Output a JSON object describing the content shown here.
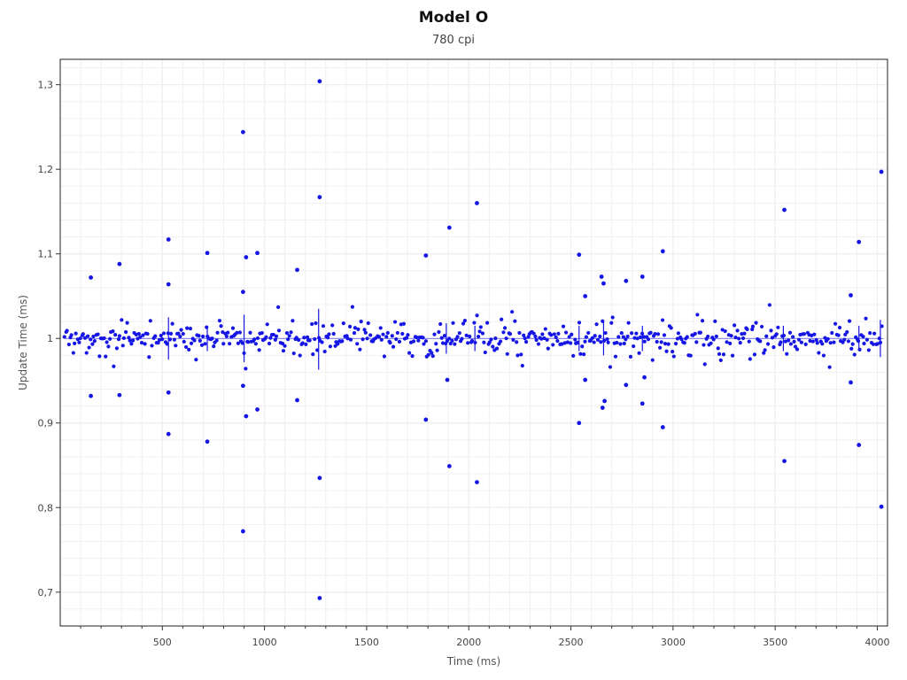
{
  "chart_data": {
    "type": "scatter",
    "title": "Model O",
    "subtitle": "780 cpi",
    "xlabel": "Time (ms)",
    "ylabel": "Update Time (ms)",
    "xlim": [
      0,
      4050
    ],
    "ylim": [
      0.66,
      1.33
    ],
    "xticks": [
      500,
      1000,
      1500,
      2000,
      2500,
      3000,
      3500,
      4000
    ],
    "xtick_labels": [
      "500",
      "1000",
      "1500",
      "2000",
      "2500",
      "3000",
      "3500",
      "4000"
    ],
    "yticks": [
      0.7,
      0.8,
      0.9,
      1.0,
      1.1,
      1.2,
      1.3
    ],
    "ytick_labels": [
      "0,7",
      "0,8",
      "0,9",
      "1",
      "1,1",
      "1,2",
      "1,3"
    ],
    "grid": true,
    "marker_color": "#1515e6",
    "points_note": "Dense band of points near 1.0 ms (roughly 0.97–1.04) across the whole range; outliers listed explicitly.",
    "outliers": [
      {
        "x": 150,
        "y": 1.072
      },
      {
        "x": 150,
        "y": 0.932
      },
      {
        "x": 290,
        "y": 1.088
      },
      {
        "x": 290,
        "y": 0.933
      },
      {
        "x": 530,
        "y": 1.117
      },
      {
        "x": 530,
        "y": 1.064
      },
      {
        "x": 530,
        "y": 0.936
      },
      {
        "x": 530,
        "y": 0.887
      },
      {
        "x": 720,
        "y": 1.101
      },
      {
        "x": 720,
        "y": 0.878
      },
      {
        "x": 895,
        "y": 1.244
      },
      {
        "x": 895,
        "y": 1.055
      },
      {
        "x": 895,
        "y": 0.944
      },
      {
        "x": 895,
        "y": 0.772
      },
      {
        "x": 910,
        "y": 1.096
      },
      {
        "x": 910,
        "y": 0.908
      },
      {
        "x": 965,
        "y": 1.101
      },
      {
        "x": 965,
        "y": 0.916
      },
      {
        "x": 1160,
        "y": 1.081
      },
      {
        "x": 1160,
        "y": 0.927
      },
      {
        "x": 1270,
        "y": 1.304
      },
      {
        "x": 1270,
        "y": 1.167
      },
      {
        "x": 1270,
        "y": 0.835
      },
      {
        "x": 1270,
        "y": 0.693
      },
      {
        "x": 1790,
        "y": 1.098
      },
      {
        "x": 1790,
        "y": 0.904
      },
      {
        "x": 1905,
        "y": 1.131
      },
      {
        "x": 1905,
        "y": 0.849
      },
      {
        "x": 1895,
        "y": 0.951
      },
      {
        "x": 2040,
        "y": 1.16
      },
      {
        "x": 2040,
        "y": 0.83
      },
      {
        "x": 2540,
        "y": 1.099
      },
      {
        "x": 2540,
        "y": 0.9
      },
      {
        "x": 2570,
        "y": 1.05
      },
      {
        "x": 2570,
        "y": 0.951
      },
      {
        "x": 2650,
        "y": 1.073
      },
      {
        "x": 2660,
        "y": 1.065
      },
      {
        "x": 2655,
        "y": 0.918
      },
      {
        "x": 2665,
        "y": 0.926
      },
      {
        "x": 2770,
        "y": 1.068
      },
      {
        "x": 2770,
        "y": 0.945
      },
      {
        "x": 2850,
        "y": 1.073
      },
      {
        "x": 2850,
        "y": 0.923
      },
      {
        "x": 2860,
        "y": 0.954
      },
      {
        "x": 2950,
        "y": 1.103
      },
      {
        "x": 2950,
        "y": 0.895
      },
      {
        "x": 3545,
        "y": 1.152
      },
      {
        "x": 3545,
        "y": 0.855
      },
      {
        "x": 3870,
        "y": 1.051
      },
      {
        "x": 3870,
        "y": 0.948
      },
      {
        "x": 3910,
        "y": 1.114
      },
      {
        "x": 3910,
        "y": 0.874
      },
      {
        "x": 4020,
        "y": 1.197
      },
      {
        "x": 4020,
        "y": 0.801
      }
    ],
    "band_center": 1.0,
    "band_halfwidth": 0.022,
    "band_count": 560,
    "spikes": [
      {
        "x": 530,
        "low": 0.975,
        "high": 1.025
      },
      {
        "x": 720,
        "low": 0.985,
        "high": 1.015
      },
      {
        "x": 900,
        "low": 0.972,
        "high": 1.028
      },
      {
        "x": 1265,
        "low": 0.963,
        "high": 1.035
      },
      {
        "x": 1890,
        "low": 0.982,
        "high": 1.018
      },
      {
        "x": 2030,
        "low": 0.985,
        "high": 1.015
      },
      {
        "x": 2540,
        "low": 0.985,
        "high": 1.015
      },
      {
        "x": 2660,
        "low": 0.98,
        "high": 1.02
      },
      {
        "x": 2850,
        "low": 0.985,
        "high": 1.015
      },
      {
        "x": 3540,
        "low": 0.985,
        "high": 1.015
      },
      {
        "x": 3910,
        "low": 0.985,
        "high": 1.015
      },
      {
        "x": 4015,
        "low": 0.978,
        "high": 1.022
      }
    ]
  }
}
